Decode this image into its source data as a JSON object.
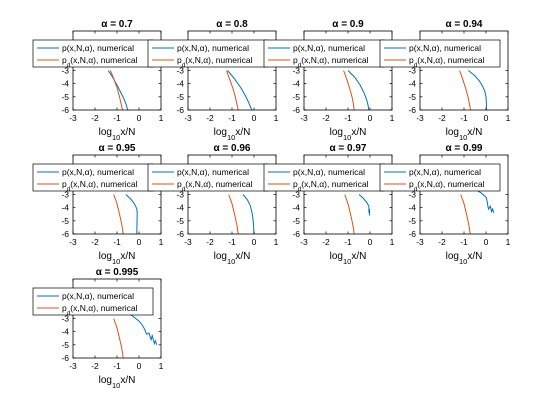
{
  "colors": {
    "numerical": "#0072BD",
    "decimated": "#D95319",
    "axis": "#000000",
    "legend_border": "#000000",
    "background": "#ffffff"
  },
  "chart_data": [
    {
      "type": "line",
      "title": "α = 0.7",
      "xlabel": "log10x/N",
      "xlim": [
        -3,
        1
      ],
      "ylim": [
        -6,
        0
      ],
      "xticks": [
        -3,
        -2,
        -1,
        0,
        1
      ],
      "yticks": [
        -6,
        -5,
        -4,
        -3
      ],
      "legend_position": "top",
      "series": [
        {
          "name": "p(x,N,α), numerical",
          "color_key": "numerical",
          "x": [
            -1.4,
            -1.2,
            -1.0,
            -0.85,
            -0.7,
            -0.6,
            -0.55,
            -0.5
          ],
          "y": [
            -3.0,
            -3.5,
            -4.1,
            -4.6,
            -5.1,
            -5.5,
            -5.8,
            -6.0
          ]
        },
        {
          "name": "pd(x,N,α), numerical",
          "color_key": "decimated",
          "x": [
            -1.3,
            -1.15,
            -1.0,
            -0.9,
            -0.82,
            -0.75
          ],
          "y": [
            -3.0,
            -3.6,
            -4.3,
            -4.9,
            -5.5,
            -6.0
          ]
        }
      ]
    },
    {
      "type": "line",
      "title": "α = 0.8",
      "xlabel": "log10x/N",
      "xlim": [
        -3,
        1
      ],
      "ylim": [
        -6,
        0
      ],
      "xticks": [
        -3,
        -2,
        -1,
        0,
        1
      ],
      "yticks": [
        -6,
        -5,
        -4,
        -3
      ],
      "legend_position": "top",
      "series": [
        {
          "name": "p(x,N,α), numerical",
          "color_key": "numerical",
          "x": [
            -1.2,
            -0.9,
            -0.6,
            -0.4,
            -0.25,
            -0.15,
            -0.1
          ],
          "y": [
            -3.0,
            -3.6,
            -4.3,
            -4.9,
            -5.4,
            -5.8,
            -6.0
          ]
        },
        {
          "name": "pd(x,N,α), numerical",
          "color_key": "decimated",
          "x": [
            -1.25,
            -1.1,
            -0.95,
            -0.85,
            -0.78,
            -0.72
          ],
          "y": [
            -3.0,
            -3.7,
            -4.4,
            -5.0,
            -5.5,
            -6.0
          ]
        }
      ]
    },
    {
      "type": "line",
      "title": "α = 0.9",
      "xlabel": "log10x/N",
      "xlim": [
        -3,
        1
      ],
      "ylim": [
        -6,
        0
      ],
      "xticks": [
        -3,
        -2,
        -1,
        0,
        1
      ],
      "yticks": [
        -6,
        -5,
        -4,
        -3
      ],
      "legend_position": "top",
      "series": [
        {
          "name": "p(x,N,α), numerical",
          "color_key": "numerical",
          "x": [
            -1.0,
            -0.7,
            -0.45,
            -0.3,
            -0.2,
            -0.12,
            -0.08,
            -0.05
          ],
          "y": [
            -3.0,
            -3.5,
            -4.1,
            -4.6,
            -5.0,
            -5.4,
            -5.7,
            -6.0
          ]
        },
        {
          "name": "pd(x,N,α), numerical",
          "color_key": "decimated",
          "x": [
            -1.2,
            -1.05,
            -0.92,
            -0.82,
            -0.76,
            -0.72
          ],
          "y": [
            -3.0,
            -3.7,
            -4.4,
            -5.0,
            -5.5,
            -6.0
          ]
        }
      ]
    },
    {
      "type": "line",
      "title": "α = 0.94",
      "xlabel": "log10x/N",
      "xlim": [
        -3,
        1
      ],
      "ylim": [
        -6,
        0
      ],
      "xticks": [
        -3,
        -2,
        -1,
        0,
        1
      ],
      "yticks": [
        -6,
        -5,
        -4,
        -3
      ],
      "legend_position": "top",
      "series": [
        {
          "name": "p(x,N,α), numerical",
          "color_key": "numerical",
          "x": [
            -0.8,
            -0.5,
            -0.3,
            -0.15,
            -0.05,
            0.0,
            0.02,
            0.02
          ],
          "y": [
            -3.0,
            -3.4,
            -3.8,
            -4.2,
            -4.6,
            -5.0,
            -5.5,
            -6.0
          ]
        },
        {
          "name": "pd(x,N,α), numerical",
          "color_key": "decimated",
          "x": [
            -1.2,
            -1.05,
            -0.92,
            -0.82,
            -0.76,
            -0.7
          ],
          "y": [
            -3.0,
            -3.7,
            -4.4,
            -5.0,
            -5.5,
            -6.0
          ]
        }
      ]
    },
    {
      "type": "line",
      "title": "α = 0.95",
      "xlabel": "log10x/N",
      "xlim": [
        -3,
        1
      ],
      "ylim": [
        -6,
        0
      ],
      "xticks": [
        -3,
        -2,
        -1,
        0,
        1
      ],
      "yticks": [
        -6,
        -5,
        -4,
        -3
      ],
      "legend_position": "top",
      "series": [
        {
          "name": "p(x,N,α), numerical",
          "color_key": "numerical",
          "x": [
            -0.6,
            -0.4,
            -0.25,
            -0.15,
            -0.1,
            -0.08,
            -0.1
          ],
          "y": [
            -3.0,
            -3.3,
            -3.6,
            -3.9,
            -4.1,
            -4.4,
            -6.0
          ]
        },
        {
          "name": "pd(x,N,α), numerical",
          "color_key": "decimated",
          "x": [
            -1.15,
            -1.0,
            -0.9,
            -0.82,
            -0.76,
            -0.72
          ],
          "y": [
            -3.0,
            -3.7,
            -4.4,
            -5.0,
            -5.5,
            -6.0
          ]
        }
      ]
    },
    {
      "type": "line",
      "title": "α = 0.96",
      "xlabel": "log10x/N",
      "xlim": [
        -3,
        1
      ],
      "ylim": [
        -6,
        0
      ],
      "xticks": [
        -3,
        -2,
        -1,
        0,
        1
      ],
      "yticks": [
        -6,
        -5,
        -4,
        -3
      ],
      "legend_position": "top",
      "series": [
        {
          "name": "p(x,N,α), numerical",
          "color_key": "numerical",
          "x": [
            -0.5,
            -0.3,
            -0.18,
            -0.1,
            -0.05,
            -0.02,
            0.0
          ],
          "y": [
            -3.0,
            -3.4,
            -3.8,
            -4.3,
            -4.8,
            -5.4,
            -6.0
          ]
        },
        {
          "name": "pd(x,N,α), numerical",
          "color_key": "decimated",
          "x": [
            -1.15,
            -1.0,
            -0.9,
            -0.82,
            -0.76,
            -0.72
          ],
          "y": [
            -3.0,
            -3.7,
            -4.4,
            -5.0,
            -5.5,
            -6.0
          ]
        }
      ]
    },
    {
      "type": "line",
      "title": "α = 0.97",
      "xlabel": "log10x/N",
      "xlim": [
        -3,
        1
      ],
      "ylim": [
        -6,
        0
      ],
      "xticks": [
        -3,
        -2,
        -1,
        0,
        1
      ],
      "yticks": [
        -6,
        -5,
        -4,
        -3
      ],
      "legend_position": "top",
      "series": [
        {
          "name": "p(x,N,α), numerical",
          "color_key": "numerical",
          "x": [
            -0.5,
            -0.3,
            -0.15,
            -0.08,
            -0.05,
            -0.05,
            -0.02,
            -0.02
          ],
          "y": [
            -3.0,
            -3.3,
            -3.6,
            -3.8,
            -3.9,
            -4.4,
            -4.1,
            -4.6
          ]
        },
        {
          "name": "pd(x,N,α), numerical",
          "color_key": "decimated",
          "x": [
            -1.15,
            -1.0,
            -0.9,
            -0.82,
            -0.76,
            -0.72
          ],
          "y": [
            -3.0,
            -3.7,
            -4.4,
            -5.0,
            -5.5,
            -6.0
          ]
        }
      ]
    },
    {
      "type": "line",
      "title": "α = 0.99",
      "xlabel": "log10x/N",
      "xlim": [
        -3,
        1
      ],
      "ylim": [
        -6,
        0
      ],
      "xticks": [
        -3,
        -2,
        -1,
        0,
        1
      ],
      "yticks": [
        -6,
        -5,
        -4,
        -3
      ],
      "legend_position": "top",
      "series": [
        {
          "name": "p(x,N,α), numerical",
          "color_key": "numerical",
          "x": [
            -0.9,
            -0.5,
            -0.2,
            0.0,
            0.05,
            0.1,
            0.12,
            0.2,
            0.25,
            0.3,
            0.35
          ],
          "y": [
            -2.3,
            -2.6,
            -2.9,
            -3.2,
            -3.5,
            -4.0,
            -4.1,
            -3.9,
            -4.3,
            -4.1,
            -4.4
          ]
        },
        {
          "name": "pd(x,N,α), numerical",
          "color_key": "decimated",
          "x": [
            -1.15,
            -1.0,
            -0.9,
            -0.82,
            -0.76,
            -0.72
          ],
          "y": [
            -3.0,
            -3.7,
            -4.4,
            -5.0,
            -5.5,
            -6.0
          ]
        }
      ]
    },
    {
      "type": "line",
      "title": "α = 0.995",
      "xlabel": "log10x/N",
      "xlim": [
        -3,
        1
      ],
      "ylim": [
        -6,
        0
      ],
      "xticks": [
        -3,
        -2,
        -1,
        0,
        1
      ],
      "yticks": [
        -6,
        -5,
        -4,
        -3
      ],
      "legend_position": "top",
      "series": [
        {
          "name": "p(x,N,α), numerical",
          "color_key": "numerical",
          "x": [
            -1.5,
            -1.0,
            -0.6,
            -0.3,
            0.0,
            0.15,
            0.25,
            0.35,
            0.45,
            0.55,
            0.6,
            0.7,
            0.75,
            0.8
          ],
          "y": [
            -2.2,
            -2.3,
            -2.5,
            -2.8,
            -3.2,
            -3.5,
            -3.8,
            -4.2,
            -4.1,
            -4.6,
            -4.3,
            -4.9,
            -4.7,
            -5.0
          ]
        },
        {
          "name": "pd(x,N,α), numerical",
          "color_key": "decimated",
          "x": [
            -1.15,
            -1.0,
            -0.9,
            -0.82,
            -0.76,
            -0.72
          ],
          "y": [
            -3.0,
            -3.7,
            -4.4,
            -5.0,
            -5.5,
            -6.0
          ]
        }
      ]
    }
  ]
}
